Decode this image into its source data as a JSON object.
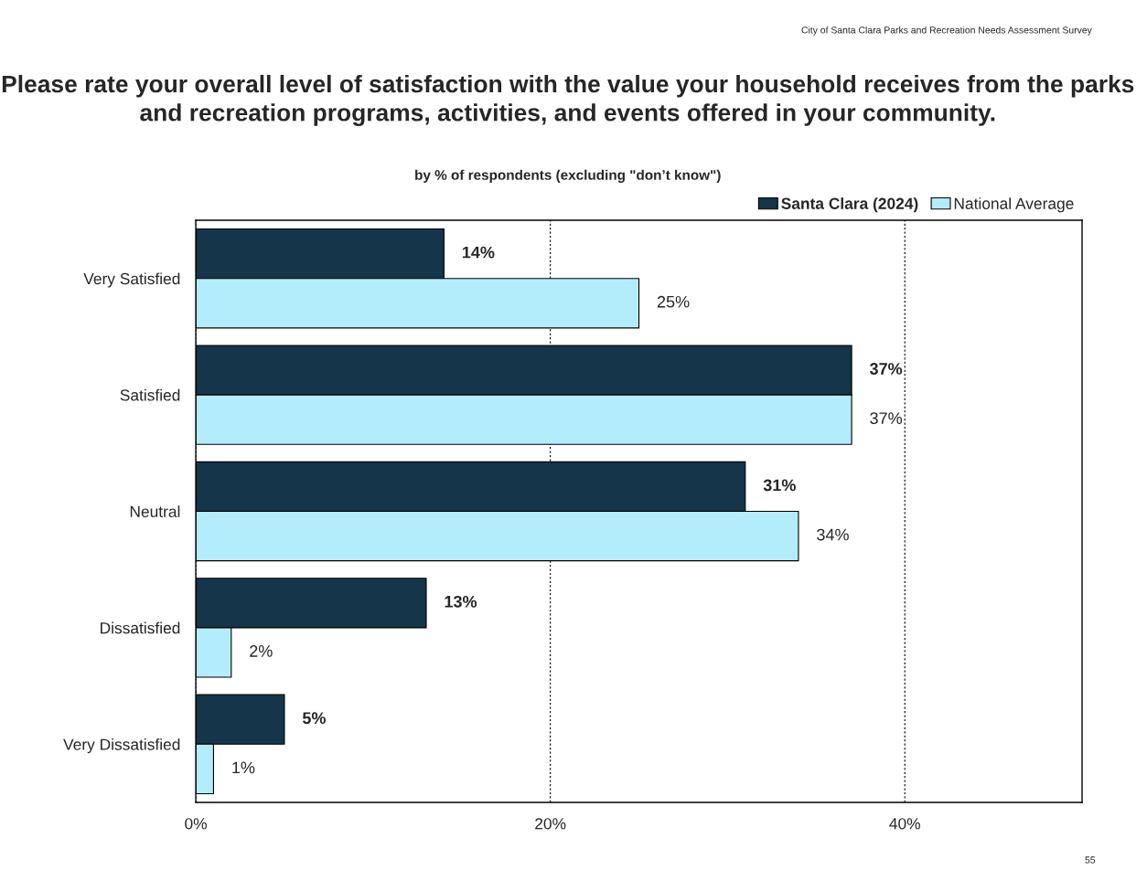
{
  "chart_data": {
    "type": "bar",
    "orientation": "horizontal",
    "title": "Please rate your overall level of satisfaction with the value your household receives from the parks and recreation programs, activities, and events offered in your community.",
    "subtitle": "by % of respondents (excluding \"don’t know\")",
    "annotations": [
      "City of Santa Clara Parks and Recreation Needs Assessment Survey",
      "55"
    ],
    "categories": [
      "Very Satisfied",
      "Satisfied",
      "Neutral",
      "Dissatisfied",
      "Very Dissatisfied"
    ],
    "series": [
      {
        "name": "Santa Clara (2024)",
        "color": "#14354a",
        "values": [
          14,
          37,
          31,
          13,
          5
        ],
        "value_labels": [
          "14%",
          "37%",
          "31%",
          "13%",
          "5%"
        ]
      },
      {
        "name": "National Average",
        "color": "#b3ecfa",
        "values": [
          25,
          37,
          34,
          2,
          1
        ],
        "value_labels": [
          "25%",
          "37%",
          "34%",
          "2%",
          "1%"
        ]
      }
    ],
    "xlim": [
      0,
      50
    ],
    "xticks": [
      {
        "value": 0,
        "label": "0%"
      },
      {
        "value": 20,
        "label": "20%"
      },
      {
        "value": 40,
        "label": "40%"
      }
    ],
    "grid": "x",
    "legend": "top right"
  }
}
